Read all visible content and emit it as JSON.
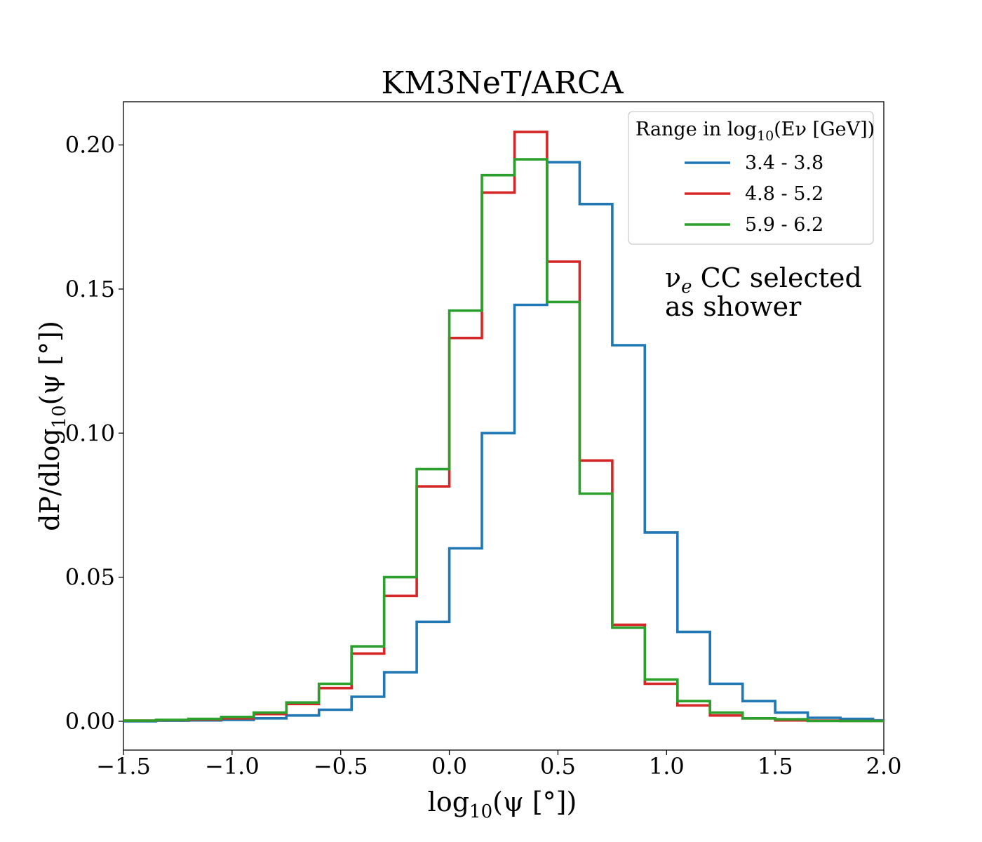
{
  "chart_data": {
    "type": "line",
    "style": "step-histogram",
    "title": "KM3NeT/ARCA",
    "xlabel": "log10(ψ [°])",
    "ylabel": "dP/dlog10(ψ [°])",
    "xlim": [
      -1.5,
      2.0
    ],
    "ylim": [
      -0.01,
      0.215
    ],
    "x_ticks": [
      -1.5,
      -1.0,
      -0.5,
      0.0,
      0.5,
      1.0,
      1.5,
      2.0
    ],
    "x_tick_labels": [
      "−1.5",
      "−1.0",
      "−0.5",
      "0.0",
      "0.5",
      "1.0",
      "1.5",
      "2.0"
    ],
    "y_ticks": [
      0.0,
      0.05,
      0.1,
      0.15,
      0.2
    ],
    "y_tick_labels": [
      "0.00",
      "0.05",
      "0.10",
      "0.15",
      "0.20"
    ],
    "bin_edges": [
      -1.5,
      -1.35,
      -1.2,
      -1.05,
      -0.9,
      -0.75,
      -0.6,
      -0.45,
      -0.3,
      -0.15,
      0.0,
      0.15,
      0.3,
      0.45,
      0.6,
      0.75,
      0.9,
      1.05,
      1.2,
      1.35,
      1.5,
      1.65,
      1.8,
      1.95,
      2.0
    ],
    "legend_title": "Range in log10(Eν [GeV])",
    "legend_position": "top-right",
    "series": [
      {
        "name": "3.4 - 3.8",
        "color": "#1f77b4",
        "values": [
          0.0,
          0.0002,
          0.0003,
          0.0005,
          0.001,
          0.002,
          0.004,
          0.0085,
          0.017,
          0.0345,
          0.06,
          0.1,
          0.1445,
          0.194,
          0.1795,
          0.1305,
          0.0655,
          0.031,
          0.013,
          0.007,
          0.003,
          0.0012,
          0.0008,
          0.0003
        ]
      },
      {
        "name": "4.8 - 5.2",
        "color": "#d62728",
        "values": [
          0.0002,
          0.0004,
          0.0006,
          0.001,
          0.0025,
          0.006,
          0.0115,
          0.0235,
          0.0435,
          0.0815,
          0.133,
          0.1835,
          0.2045,
          0.1595,
          0.0905,
          0.0335,
          0.013,
          0.0055,
          0.002,
          0.001,
          0.0003,
          0.0002,
          0.0001,
          0.0001
        ]
      },
      {
        "name": "5.9 - 6.2",
        "color": "#2ca02c",
        "values": [
          0.0002,
          0.0005,
          0.0008,
          0.0015,
          0.003,
          0.0065,
          0.013,
          0.026,
          0.05,
          0.0875,
          0.1425,
          0.1895,
          0.195,
          0.1455,
          0.079,
          0.0325,
          0.0145,
          0.007,
          0.003,
          0.001,
          0.0007,
          0.0001,
          0.0001,
          0.0001
        ]
      }
    ],
    "annotation": [
      "νe CC selected",
      "as shower"
    ]
  }
}
